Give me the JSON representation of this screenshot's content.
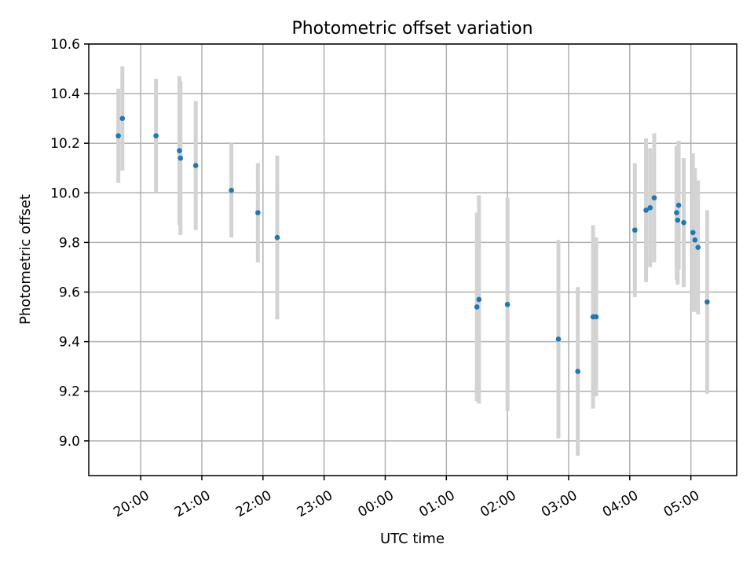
{
  "chart_data": {
    "type": "scatter",
    "title": "Photometric offset variation",
    "xlabel": "UTC time",
    "ylabel": "Photometric offset",
    "xlim_hours": [
      19.15,
      29.75
    ],
    "ylim": [
      8.86,
      10.6
    ],
    "x_ticks": [
      {
        "hour": 20,
        "label": "20:00"
      },
      {
        "hour": 21,
        "label": "21:00"
      },
      {
        "hour": 22,
        "label": "22:00"
      },
      {
        "hour": 23,
        "label": "23:00"
      },
      {
        "hour": 24,
        "label": "00:00"
      },
      {
        "hour": 25,
        "label": "01:00"
      },
      {
        "hour": 26,
        "label": "02:00"
      },
      {
        "hour": 27,
        "label": "03:00"
      },
      {
        "hour": 28,
        "label": "04:00"
      },
      {
        "hour": 29,
        "label": "05:00"
      }
    ],
    "y_ticks": [
      {
        "value": 9.0,
        "label": "9.0"
      },
      {
        "value": 9.2,
        "label": "9.2"
      },
      {
        "value": 9.4,
        "label": "9.4"
      },
      {
        "value": 9.6,
        "label": "9.6"
      },
      {
        "value": 9.8,
        "label": "9.8"
      },
      {
        "value": 10.0,
        "label": "10.0"
      },
      {
        "value": 10.2,
        "label": "10.2"
      },
      {
        "value": 10.4,
        "label": "10.4"
      },
      {
        "value": 10.6,
        "label": "10.6"
      }
    ],
    "grid": true,
    "x_tick_rotation_deg": 30,
    "colors": {
      "points": "#1f77b4",
      "error_bars": "#d3d3d3",
      "grid": "#b0b0b0"
    },
    "points": [
      {
        "time": "19:38",
        "y": 10.23,
        "err": 0.19
      },
      {
        "time": "19:42",
        "y": 10.3,
        "err": 0.21
      },
      {
        "time": "20:15",
        "y": 10.23,
        "err": 0.23
      },
      {
        "time": "20:38",
        "y": 10.17,
        "err": 0.3
      },
      {
        "time": "20:39",
        "y": 10.14,
        "err": 0.31
      },
      {
        "time": "20:54",
        "y": 10.11,
        "err": 0.26
      },
      {
        "time": "21:29",
        "y": 10.01,
        "err": 0.19
      },
      {
        "time": "21:55",
        "y": 9.92,
        "err": 0.2
      },
      {
        "time": "22:14",
        "y": 9.82,
        "err": 0.33
      },
      {
        "time": "01:30",
        "y": 9.54,
        "err": 0.38
      },
      {
        "time": "01:32",
        "y": 9.57,
        "err": 0.42
      },
      {
        "time": "02:00",
        "y": 9.55,
        "err": 0.43
      },
      {
        "time": "02:50",
        "y": 9.41,
        "err": 0.4
      },
      {
        "time": "03:09",
        "y": 9.28,
        "err": 0.34
      },
      {
        "time": "03:24",
        "y": 9.5,
        "err": 0.37
      },
      {
        "time": "03:27",
        "y": 9.5,
        "err": 0.32
      },
      {
        "time": "04:05",
        "y": 9.85,
        "err": 0.27
      },
      {
        "time": "04:16",
        "y": 9.93,
        "err": 0.29
      },
      {
        "time": "04:20",
        "y": 9.94,
        "err": 0.24
      },
      {
        "time": "04:24",
        "y": 9.98,
        "err": 0.26
      },
      {
        "time": "04:46",
        "y": 9.92,
        "err": 0.27
      },
      {
        "time": "04:47",
        "y": 9.89,
        "err": 0.26
      },
      {
        "time": "04:48",
        "y": 9.95,
        "err": 0.26
      },
      {
        "time": "04:53",
        "y": 9.88,
        "err": 0.26
      },
      {
        "time": "05:02",
        "y": 9.84,
        "err": 0.32
      },
      {
        "time": "05:04",
        "y": 9.81,
        "err": 0.29
      },
      {
        "time": "05:07",
        "y": 9.78,
        "err": 0.27
      },
      {
        "time": "05:16",
        "y": 9.56,
        "err": 0.37
      }
    ]
  }
}
